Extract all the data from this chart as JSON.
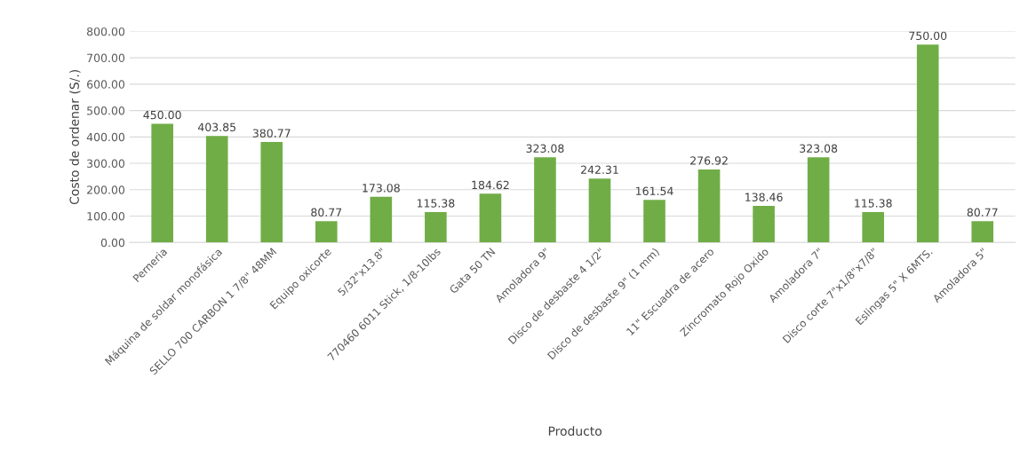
{
  "chart_data": {
    "type": "bar",
    "xlabel": "Producto",
    "ylabel": "Costo de ordenar (S/.)",
    "categories": [
      "Perneria",
      "Máquina de soldar monofásica",
      "SELLO 700 CARBON 1 7/8\" 48MM",
      "Equipo oxicorte",
      "5/32\"x13.8\"",
      "770460 6011 Stick, 1/8-10lbs",
      "Gata 50 TN",
      "Amoladora 9\"",
      "Disco de desbaste 4 1/2\"",
      "Disco de desbaste 9\" (1 mm)",
      "11\" Escuadra de acero",
      "Zincromato Rojo Oxido",
      "Amoladora 7\"",
      "Disco corte 7\"x1/8\"x7/8\"",
      "Eslingas 5\" X 6MTS.",
      "Amoladora 5\""
    ],
    "values": [
      450.0,
      403.85,
      380.77,
      80.77,
      173.08,
      115.38,
      184.62,
      323.08,
      242.31,
      161.54,
      276.92,
      138.46,
      323.08,
      115.38,
      750.0,
      80.77
    ],
    "value_labels": [
      "450.00",
      "403.85",
      "380.77",
      "80.77",
      "173.08",
      "115.38",
      "184.62",
      "323.08",
      "242.31",
      "161.54",
      "276.92",
      "138.46",
      "323.08",
      "115.38",
      "750.00",
      "80.77"
    ],
    "color": "#70ad47",
    "ylim": [
      0,
      800
    ],
    "yticks": [
      {
        "value": 0,
        "label": "0.00"
      },
      {
        "value": 100,
        "label": "100.00"
      },
      {
        "value": 200,
        "label": "200.00"
      },
      {
        "value": 300,
        "label": "300.00"
      },
      {
        "value": 400,
        "label": "400.00"
      },
      {
        "value": 500,
        "label": "500.00"
      },
      {
        "value": 600,
        "label": "600.00"
      },
      {
        "value": 700,
        "label": "700.00"
      },
      {
        "value": 800,
        "label": "800.00"
      }
    ],
    "grid": "y"
  }
}
